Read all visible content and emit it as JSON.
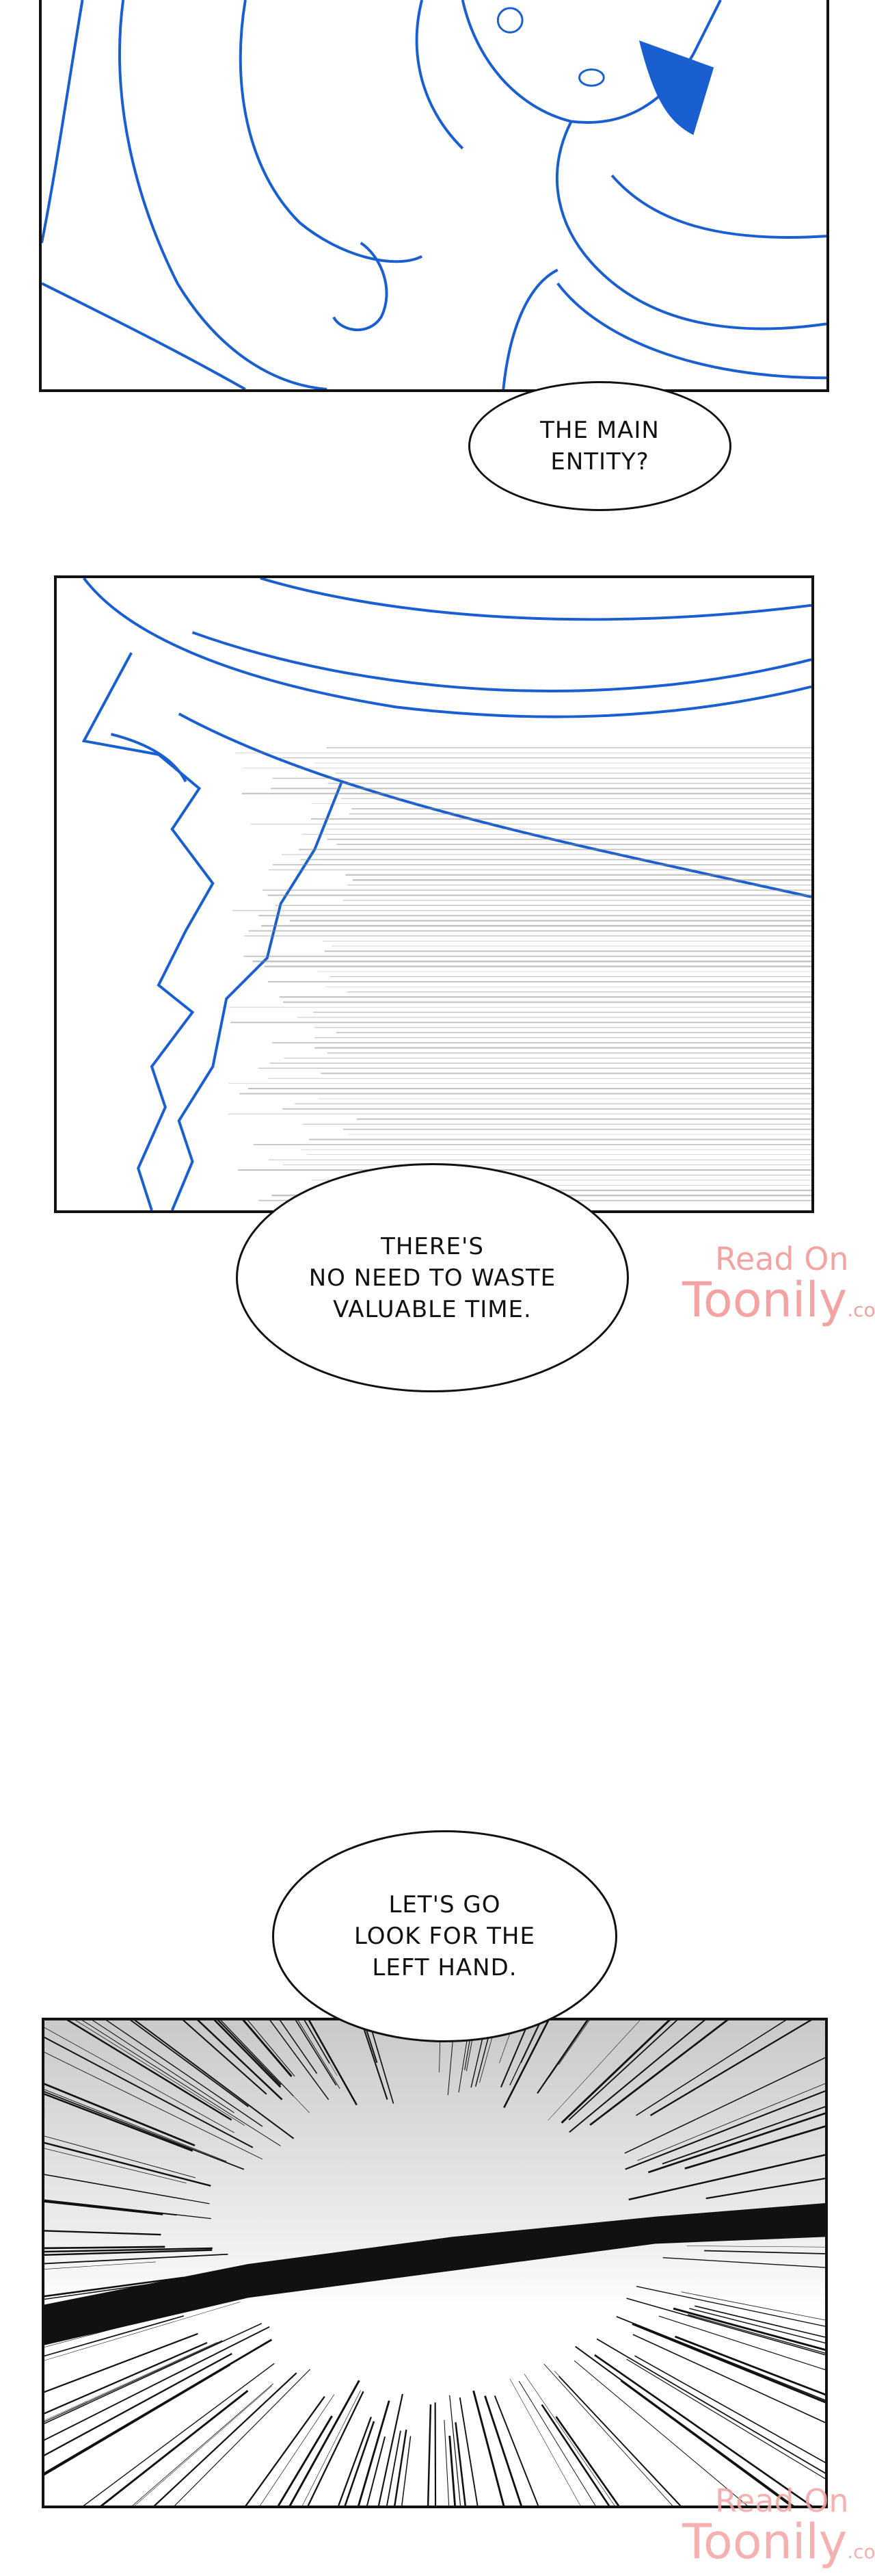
{
  "bubbles": [
    {
      "text": "THE MAIN\nENTITY?"
    },
    {
      "text": "THERE'S\nNO NEED TO WASTE\nVALUABLE TIME."
    },
    {
      "text": "LET'S GO\nLOOK FOR THE\nLEFT HAND."
    }
  ],
  "watermark": {
    "line1": "Read On",
    "line2": "Toonily",
    "suffix": ".com",
    "color": "#f4a3a3"
  },
  "colors": {
    "ink_blue": "#1a5fd0",
    "border": "#111111"
  }
}
